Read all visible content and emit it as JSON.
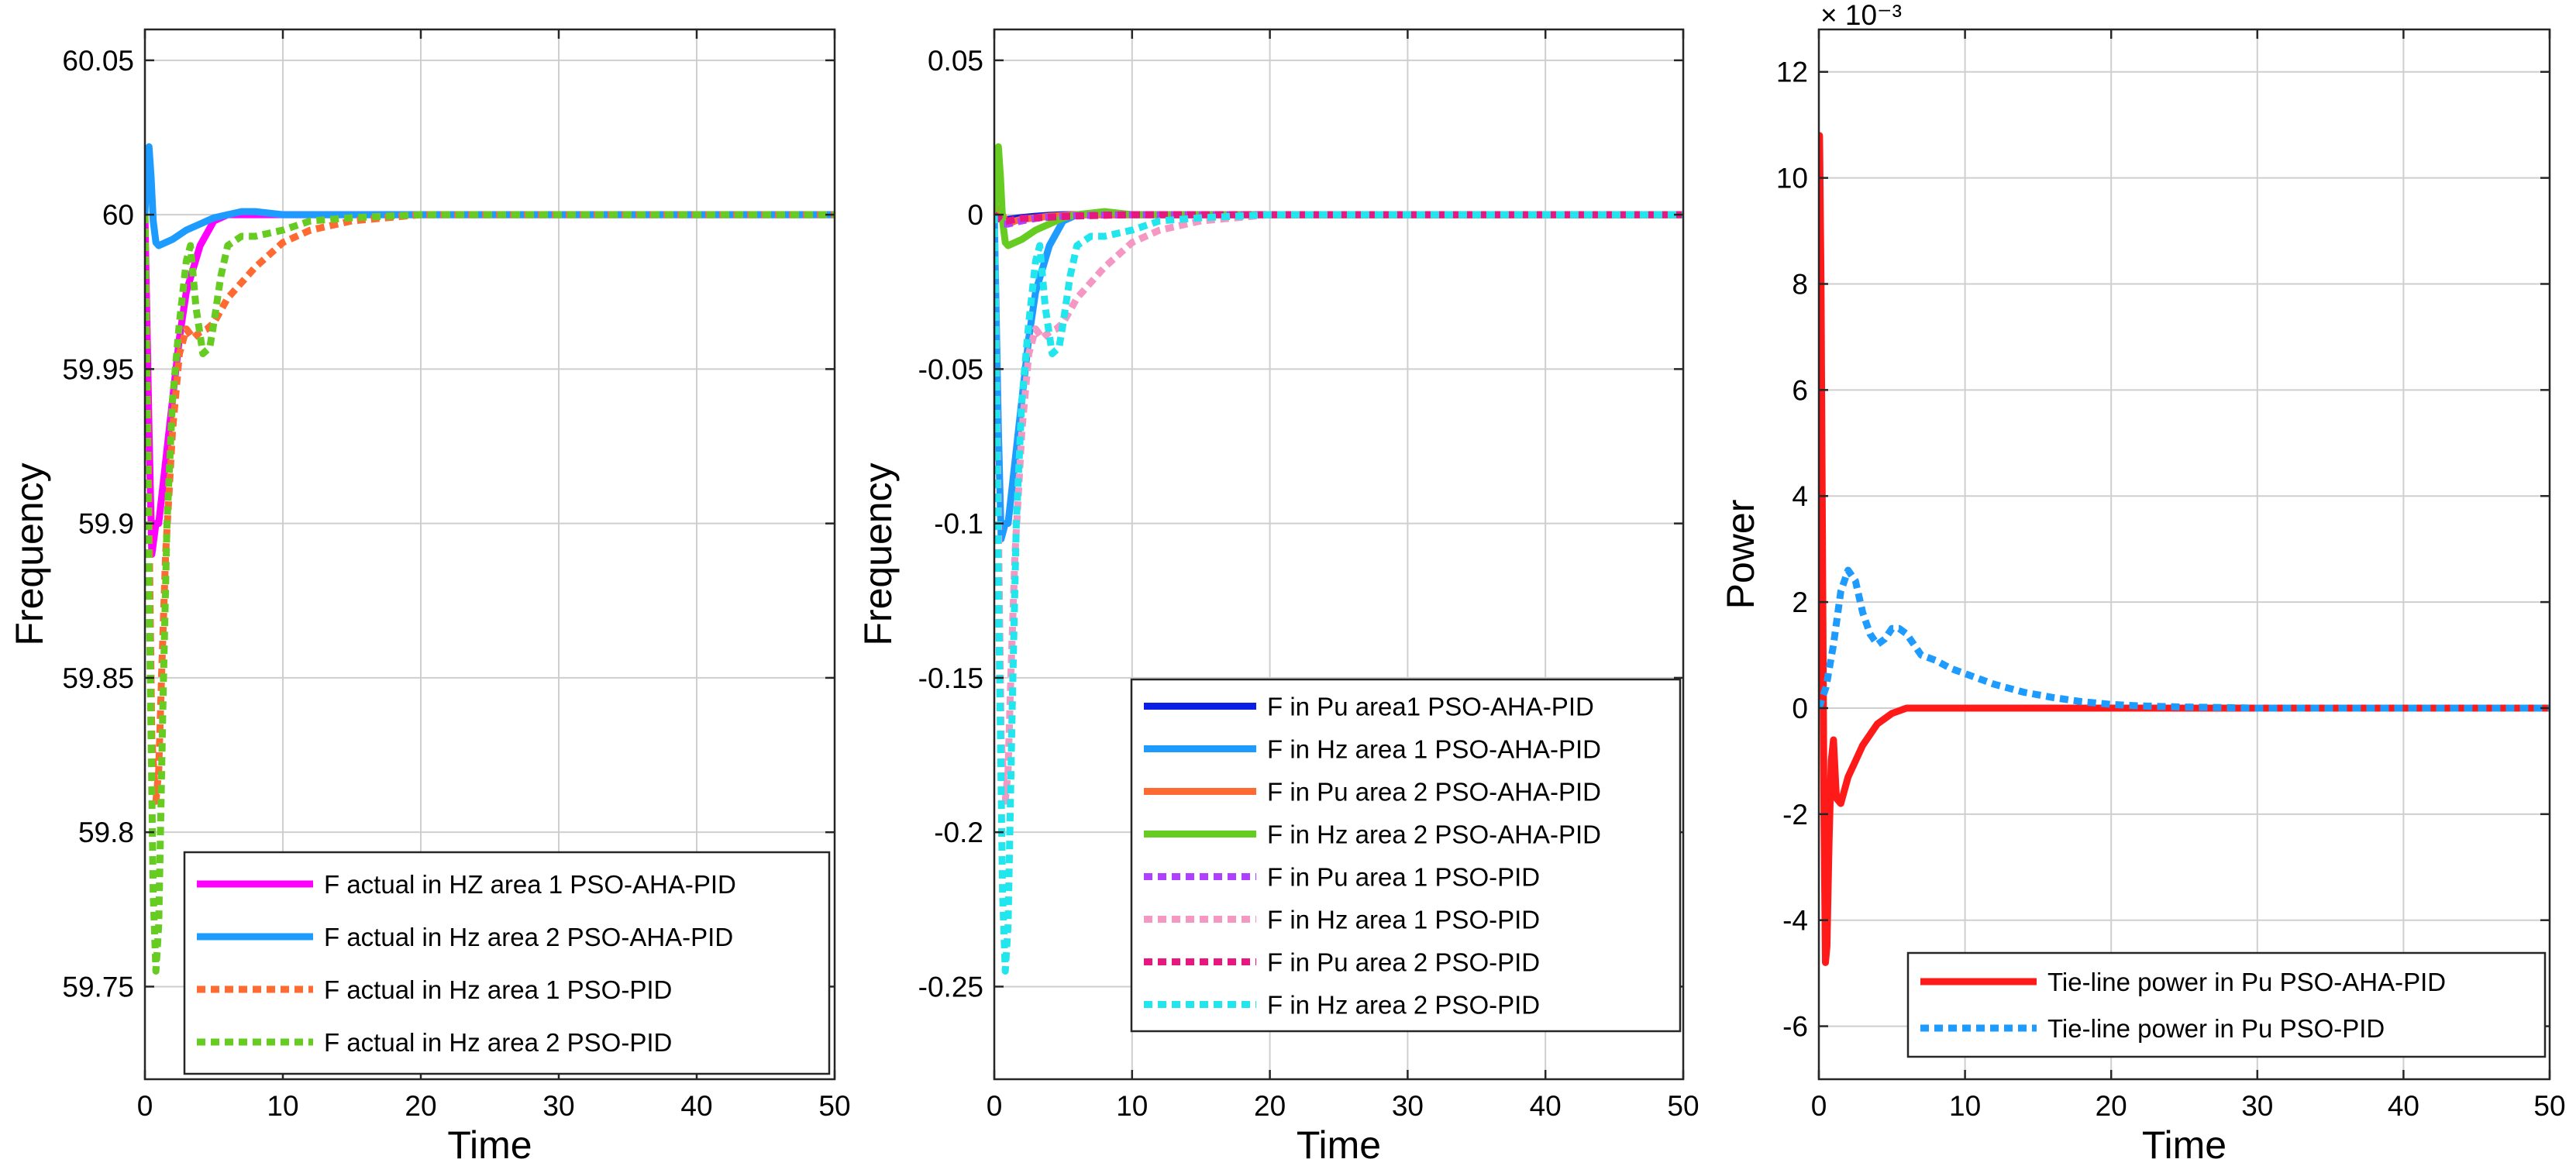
{
  "chart_data": [
    {
      "type": "line",
      "title": "",
      "xlabel": "Time",
      "ylabel": "Frequency",
      "xlim": [
        0,
        50
      ],
      "ylim": [
        59.72,
        60.06
      ],
      "xticks": [
        0,
        10,
        20,
        30,
        40,
        50
      ],
      "xtick_labels": [
        "0",
        "10",
        "20",
        "30",
        "40",
        "50"
      ],
      "yticks": [
        59.75,
        59.8,
        59.85,
        59.9,
        59.95,
        60,
        60.05
      ],
      "ytick_labels": [
        "59.75",
        "59.8",
        "59.85",
        "59.9",
        "59.95",
        "60",
        "60.05"
      ],
      "grid": true,
      "legend_position": "bottom-right",
      "series": [
        {
          "name": "F actual in HZ area 1 PSO-AHA-PID",
          "color": "#ff00ff",
          "dash": "solid",
          "x": [
            0,
            0.3,
            0.5,
            0.8,
            1.0,
            1.5,
            2.0,
            2.5,
            3.0,
            4.0,
            5.0,
            6.0,
            8.0,
            10,
            15,
            50
          ],
          "y": [
            60.0,
            59.93,
            59.89,
            59.9,
            59.9,
            59.92,
            59.94,
            59.96,
            59.975,
            59.99,
            59.998,
            60.0,
            60.0,
            60.0,
            60.0,
            60.0
          ]
        },
        {
          "name": "F actual in Hz area 2 PSO-AHA-PID",
          "color": "#1e9bff",
          "dash": "solid",
          "x": [
            0,
            0.15,
            0.3,
            0.45,
            0.6,
            0.8,
            1.0,
            1.5,
            2,
            3,
            4,
            5,
            6,
            7,
            8,
            10,
            12,
            15,
            50
          ],
          "y": [
            60.0,
            60.018,
            60.022,
            60.012,
            59.998,
            59.991,
            59.99,
            59.991,
            59.992,
            59.995,
            59.997,
            59.999,
            60.0,
            60.001,
            60.001,
            60.0,
            60.0,
            60.0,
            60.0
          ]
        },
        {
          "name": "F actual in Hz area 1 PSO-PID",
          "color": "#ff6a33",
          "dash": "dotted",
          "x": [
            0,
            0.3,
            0.5,
            0.8,
            1.0,
            1.2,
            1.5,
            2,
            2.5,
            3,
            3.5,
            4,
            4.5,
            5,
            6,
            8,
            10,
            12,
            15,
            20,
            25,
            50
          ],
          "y": [
            60.0,
            59.9,
            59.83,
            59.81,
            59.82,
            59.85,
            59.89,
            59.93,
            59.955,
            59.963,
            59.96,
            59.962,
            59.963,
            59.965,
            59.973,
            59.983,
            59.991,
            59.995,
            59.998,
            60.0,
            60.0,
            60.0
          ]
        },
        {
          "name": "F actual in Hz area 2 PSO-PID",
          "color": "#66cc22",
          "dash": "dotted",
          "x": [
            0,
            0.3,
            0.6,
            0.8,
            1.0,
            1.3,
            1.6,
            2,
            2.5,
            3,
            3.3,
            3.7,
            4.2,
            4.7,
            5,
            5.5,
            6,
            7,
            8,
            10,
            12,
            15,
            20,
            25,
            50
          ],
          "y": [
            60.0,
            59.88,
            59.78,
            59.755,
            59.77,
            59.84,
            59.9,
            59.94,
            59.965,
            59.985,
            59.99,
            59.97,
            59.955,
            59.957,
            59.965,
            59.98,
            59.99,
            59.993,
            59.993,
            59.995,
            59.998,
            59.999,
            60.0,
            60.0,
            60.0
          ]
        }
      ]
    },
    {
      "type": "line",
      "title": "",
      "xlabel": "Time",
      "ylabel": "Frequency",
      "xlim": [
        0,
        50
      ],
      "ylim": [
        -0.28,
        0.06
      ],
      "xticks": [
        0,
        10,
        20,
        30,
        40,
        50
      ],
      "xtick_labels": [
        "0",
        "10",
        "20",
        "30",
        "40",
        "50"
      ],
      "yticks": [
        -0.25,
        -0.2,
        -0.15,
        -0.1,
        -0.05,
        0,
        0.05
      ],
      "ytick_labels": [
        "-0.25",
        "-0.2",
        "-0.15",
        "-0.1",
        "-0.05",
        "0",
        "0.05"
      ],
      "grid": true,
      "legend_position": "bottom-right",
      "series": [
        {
          "name": "F in Pu area1 PSO-AHA-PID",
          "color": "#0a1ee6",
          "dash": "solid",
          "x": [
            0,
            0.3,
            0.6,
            1.0,
            1.5,
            2,
            3,
            4,
            5,
            8,
            50
          ],
          "y": [
            0,
            -0.0012,
            -0.0016,
            -0.0015,
            -0.0012,
            -0.0009,
            -0.0005,
            -0.0002,
            0,
            0,
            0
          ]
        },
        {
          "name": "F in Hz area 1 PSO-AHA-PID",
          "color": "#1e9bff",
          "dash": "solid",
          "x": [
            0,
            0.3,
            0.5,
            0.8,
            1.0,
            1.5,
            2,
            2.5,
            3,
            4,
            5,
            6,
            8,
            10,
            15,
            50
          ],
          "y": [
            0,
            -0.07,
            -0.105,
            -0.1,
            -0.1,
            -0.08,
            -0.06,
            -0.04,
            -0.025,
            -0.01,
            -0.002,
            0.0,
            0.0,
            0.0,
            0.0,
            0.0
          ]
        },
        {
          "name": "F in Pu area 2 PSO-AHA-PID",
          "color": "#ff6a33",
          "dash": "solid",
          "x": [
            0,
            0.3,
            0.5,
            0.8,
            1.0,
            1.5,
            2,
            3,
            4,
            6,
            10,
            50
          ],
          "y": [
            0,
            0.002,
            0.001,
            -0.002,
            -0.003,
            -0.002,
            -0.0015,
            -0.001,
            -0.0005,
            0,
            0,
            0
          ]
        },
        {
          "name": "F in Hz area 2 PSO-AHA-PID",
          "color": "#66cc22",
          "dash": "solid",
          "x": [
            0,
            0.15,
            0.3,
            0.45,
            0.6,
            0.8,
            1.0,
            1.5,
            2,
            3,
            4,
            5,
            6,
            8,
            10,
            50
          ],
          "y": [
            0,
            0.018,
            0.022,
            0.012,
            -0.002,
            -0.009,
            -0.01,
            -0.009,
            -0.008,
            -0.005,
            -0.003,
            -0.001,
            0.0,
            0.001,
            0.0,
            0.0
          ]
        },
        {
          "name": "F in Pu  area 1 PSO-PID",
          "color": "#b040ff",
          "dash": "dotted",
          "x": [
            0,
            0.3,
            0.6,
            1.0,
            1.5,
            2,
            3,
            4,
            5,
            6,
            8,
            10,
            50
          ],
          "y": [
            0,
            -0.0015,
            -0.003,
            -0.003,
            -0.0025,
            -0.002,
            -0.0012,
            -0.0008,
            -0.0005,
            -0.0003,
            -0.0001,
            0,
            0
          ]
        },
        {
          "name": "F in Hz  area 1 PSO-PID",
          "color": "#f497c2",
          "dash": "dotted",
          "x": [
            0,
            0.3,
            0.5,
            0.8,
            1.0,
            1.2,
            1.5,
            2,
            2.5,
            3,
            3.5,
            4,
            4.5,
            5,
            6,
            8,
            10,
            12,
            15,
            20,
            25,
            50
          ],
          "y": [
            0,
            -0.1,
            -0.17,
            -0.19,
            -0.18,
            -0.15,
            -0.11,
            -0.07,
            -0.045,
            -0.037,
            -0.04,
            -0.038,
            -0.037,
            -0.035,
            -0.027,
            -0.017,
            -0.009,
            -0.005,
            -0.002,
            0,
            0,
            0
          ]
        },
        {
          "name": "F in Pu area 2 PSO-PID",
          "color": "#e8177f",
          "dash": "dotted",
          "x": [
            0,
            0.3,
            0.6,
            1.0,
            1.5,
            2,
            3,
            4,
            5,
            6,
            8,
            10,
            50
          ],
          "y": [
            0,
            -0.001,
            -0.002,
            -0.002,
            -0.0015,
            -0.0012,
            -0.001,
            -0.0008,
            -0.0006,
            -0.0004,
            -0.0002,
            0,
            0
          ]
        },
        {
          "name": "F in Hz area 2 PSO-PID",
          "color": "#22e6ee",
          "dash": "dotted",
          "x": [
            0,
            0.3,
            0.6,
            0.8,
            1.0,
            1.3,
            1.6,
            2,
            2.5,
            3,
            3.3,
            3.7,
            4.2,
            4.7,
            5,
            5.5,
            6,
            7,
            8,
            10,
            12,
            15,
            20,
            25,
            50
          ],
          "y": [
            0,
            -0.12,
            -0.22,
            -0.245,
            -0.23,
            -0.16,
            -0.1,
            -0.06,
            -0.035,
            -0.015,
            -0.01,
            -0.03,
            -0.045,
            -0.043,
            -0.035,
            -0.02,
            -0.01,
            -0.007,
            -0.007,
            -0.005,
            -0.002,
            -0.001,
            0,
            0,
            0
          ]
        }
      ]
    },
    {
      "type": "line",
      "title": "",
      "xlabel": "Time",
      "ylabel": "Power",
      "exponent_label": "× 10⁻³",
      "xlim": [
        0,
        50
      ],
      "ylim": [
        -7,
        12.8
      ],
      "xticks": [
        0,
        10,
        20,
        30,
        40,
        50
      ],
      "xtick_labels": [
        "0",
        "10",
        "20",
        "30",
        "40",
        "50"
      ],
      "yticks": [
        -6,
        -4,
        -2,
        0,
        2,
        4,
        6,
        8,
        10,
        12
      ],
      "ytick_labels": [
        "-6",
        "-4",
        "-2",
        "0",
        "2",
        "4",
        "6",
        "8",
        "10",
        "12"
      ],
      "grid": true,
      "legend_position": "bottom-right",
      "series": [
        {
          "name": "Tie-line power  in Pu PSO-AHA-PID",
          "color": "#ff1a1a",
          "dash": "solid",
          "x": [
            0,
            0.05,
            0.15,
            0.25,
            0.35,
            0.45,
            0.55,
            0.7,
            0.85,
            1.0,
            1.2,
            1.5,
            2,
            2.5,
            3,
            4,
            5,
            6,
            8,
            10,
            50
          ],
          "y": [
            0,
            10.8,
            8.0,
            3.0,
            -2.0,
            -4.8,
            -4.5,
            -2.5,
            -1.0,
            -0.6,
            -1.7,
            -1.8,
            -1.3,
            -1.0,
            -0.7,
            -0.3,
            -0.1,
            0.0,
            0.0,
            0.0,
            0.0
          ]
        },
        {
          "name": "Tie-line power in Pu PSO-PID",
          "color": "#1e9bff",
          "dash": "dotted",
          "x": [
            0,
            0.5,
            1.0,
            1.5,
            2.0,
            2.5,
            3.0,
            3.5,
            4.0,
            4.5,
            5.0,
            5.5,
            6.0,
            6.5,
            7,
            8,
            9,
            10,
            12,
            14,
            16,
            18,
            20,
            22,
            25,
            30,
            50
          ],
          "y": [
            0,
            0.4,
            1.2,
            2.2,
            2.6,
            2.4,
            1.8,
            1.4,
            1.2,
            1.3,
            1.5,
            1.5,
            1.4,
            1.2,
            1.0,
            0.9,
            0.75,
            0.65,
            0.45,
            0.3,
            0.2,
            0.12,
            0.07,
            0.04,
            0.02,
            0.0,
            0.0
          ]
        }
      ]
    }
  ]
}
